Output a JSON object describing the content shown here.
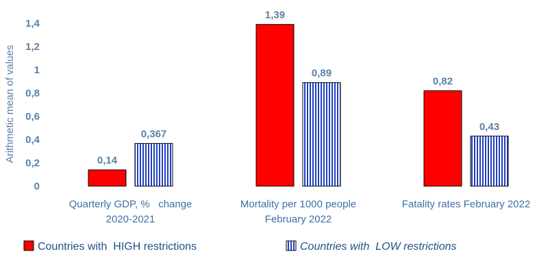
{
  "chart_data": {
    "type": "bar",
    "ylabel": "Arithmetic mean of values",
    "ylim": [
      0,
      1.4
    ],
    "yticks": [
      "0",
      "0,2",
      "0,4",
      "0,6",
      "0,8",
      "1",
      "1,2",
      "1,4"
    ],
    "grid": false,
    "legend_position": "bottom",
    "categories": [
      [
        "Quarterly GDP, %   change",
        "2020-2021"
      ],
      [
        "Mortality per 1000 people",
        "February 2022"
      ],
      [
        "Fatality rates February 2022"
      ]
    ],
    "series": [
      {
        "name": "Countries with  HIGH restrictions",
        "style": "solid",
        "color": "#ff0000",
        "values": [
          0.14,
          1.39,
          0.82
        ],
        "labels": [
          "0,14",
          "1,39",
          "0,82"
        ]
      },
      {
        "name": "Countries with  LOW restrictions",
        "style": "vertical-stripes",
        "color": "#1f3fbf",
        "values": [
          0.367,
          0.89,
          0.43
        ],
        "labels": [
          "0,367",
          "0,89",
          "0,43"
        ]
      }
    ]
  }
}
